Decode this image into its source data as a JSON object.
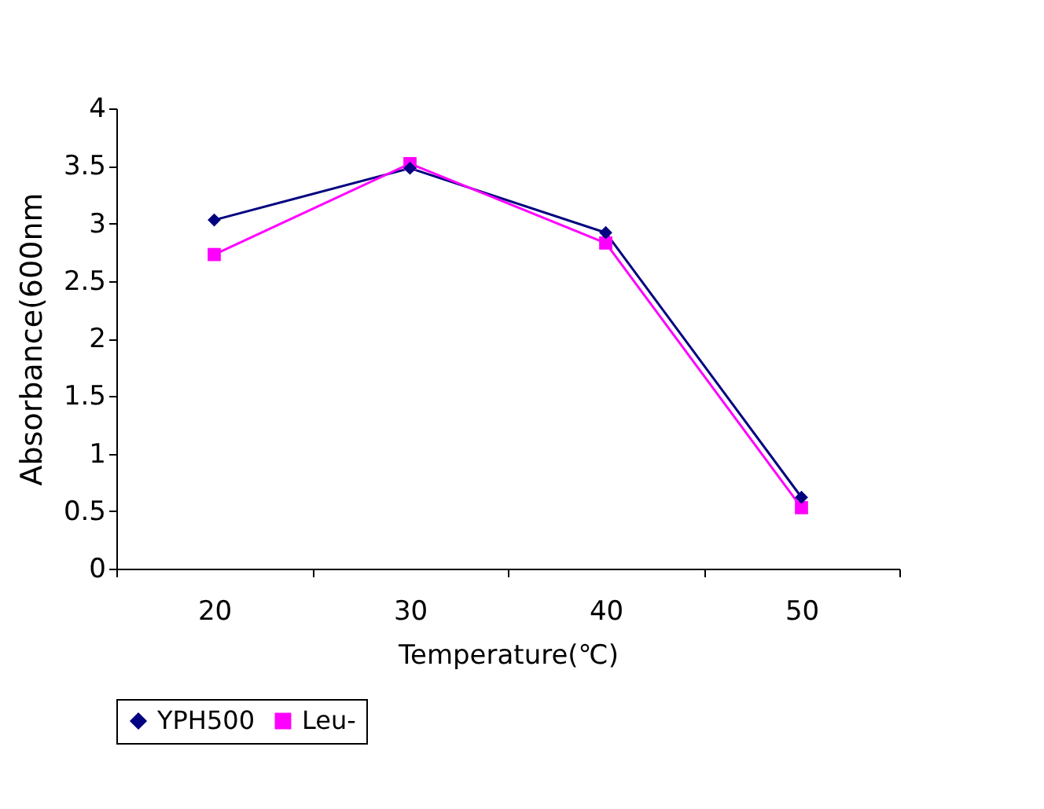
{
  "chart_data": {
    "type": "line",
    "xlabel": "Temperature(℃)",
    "ylabel": "Absorbance(600nm",
    "categories": [
      "20",
      "30",
      "40",
      "50"
    ],
    "series": [
      {
        "name": "YPH500",
        "color": "#000080",
        "marker": "diamond",
        "values": [
          3.03,
          3.48,
          2.92,
          0.62
        ]
      },
      {
        "name": "Leu-",
        "color": "#ff00ff",
        "marker": "square",
        "values": [
          2.73,
          3.52,
          2.83,
          0.53
        ]
      }
    ],
    "ylim": [
      0,
      4
    ],
    "yticks": [
      0,
      0.5,
      1,
      1.5,
      2,
      2.5,
      3,
      3.5,
      4
    ],
    "grid": false,
    "legend": "bottom",
    "line_style": "solid"
  }
}
